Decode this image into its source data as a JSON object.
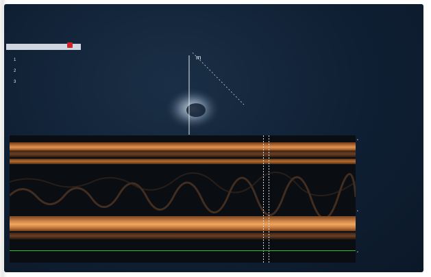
{
  "header": {
    "institution": "",
    "date": "",
    "time": "",
    "patient_name": "",
    "patient_id": "",
    "mode": "",
    "page": ""
  },
  "probe": {
    "label": ""
  },
  "measurements": [
    {
      "index": "1",
      "name": "",
      "value": ""
    },
    {
      "index": "2",
      "name": "",
      "value": ""
    },
    {
      "index": "3",
      "name": "",
      "value": ""
    }
  ],
  "brand": "",
  "side_params": [],
  "colors": {
    "screen_bg": "#0f1f33",
    "tissue": "#d4884a",
    "ecg_line": "#2fbf3a",
    "marker": "#c8262a"
  }
}
